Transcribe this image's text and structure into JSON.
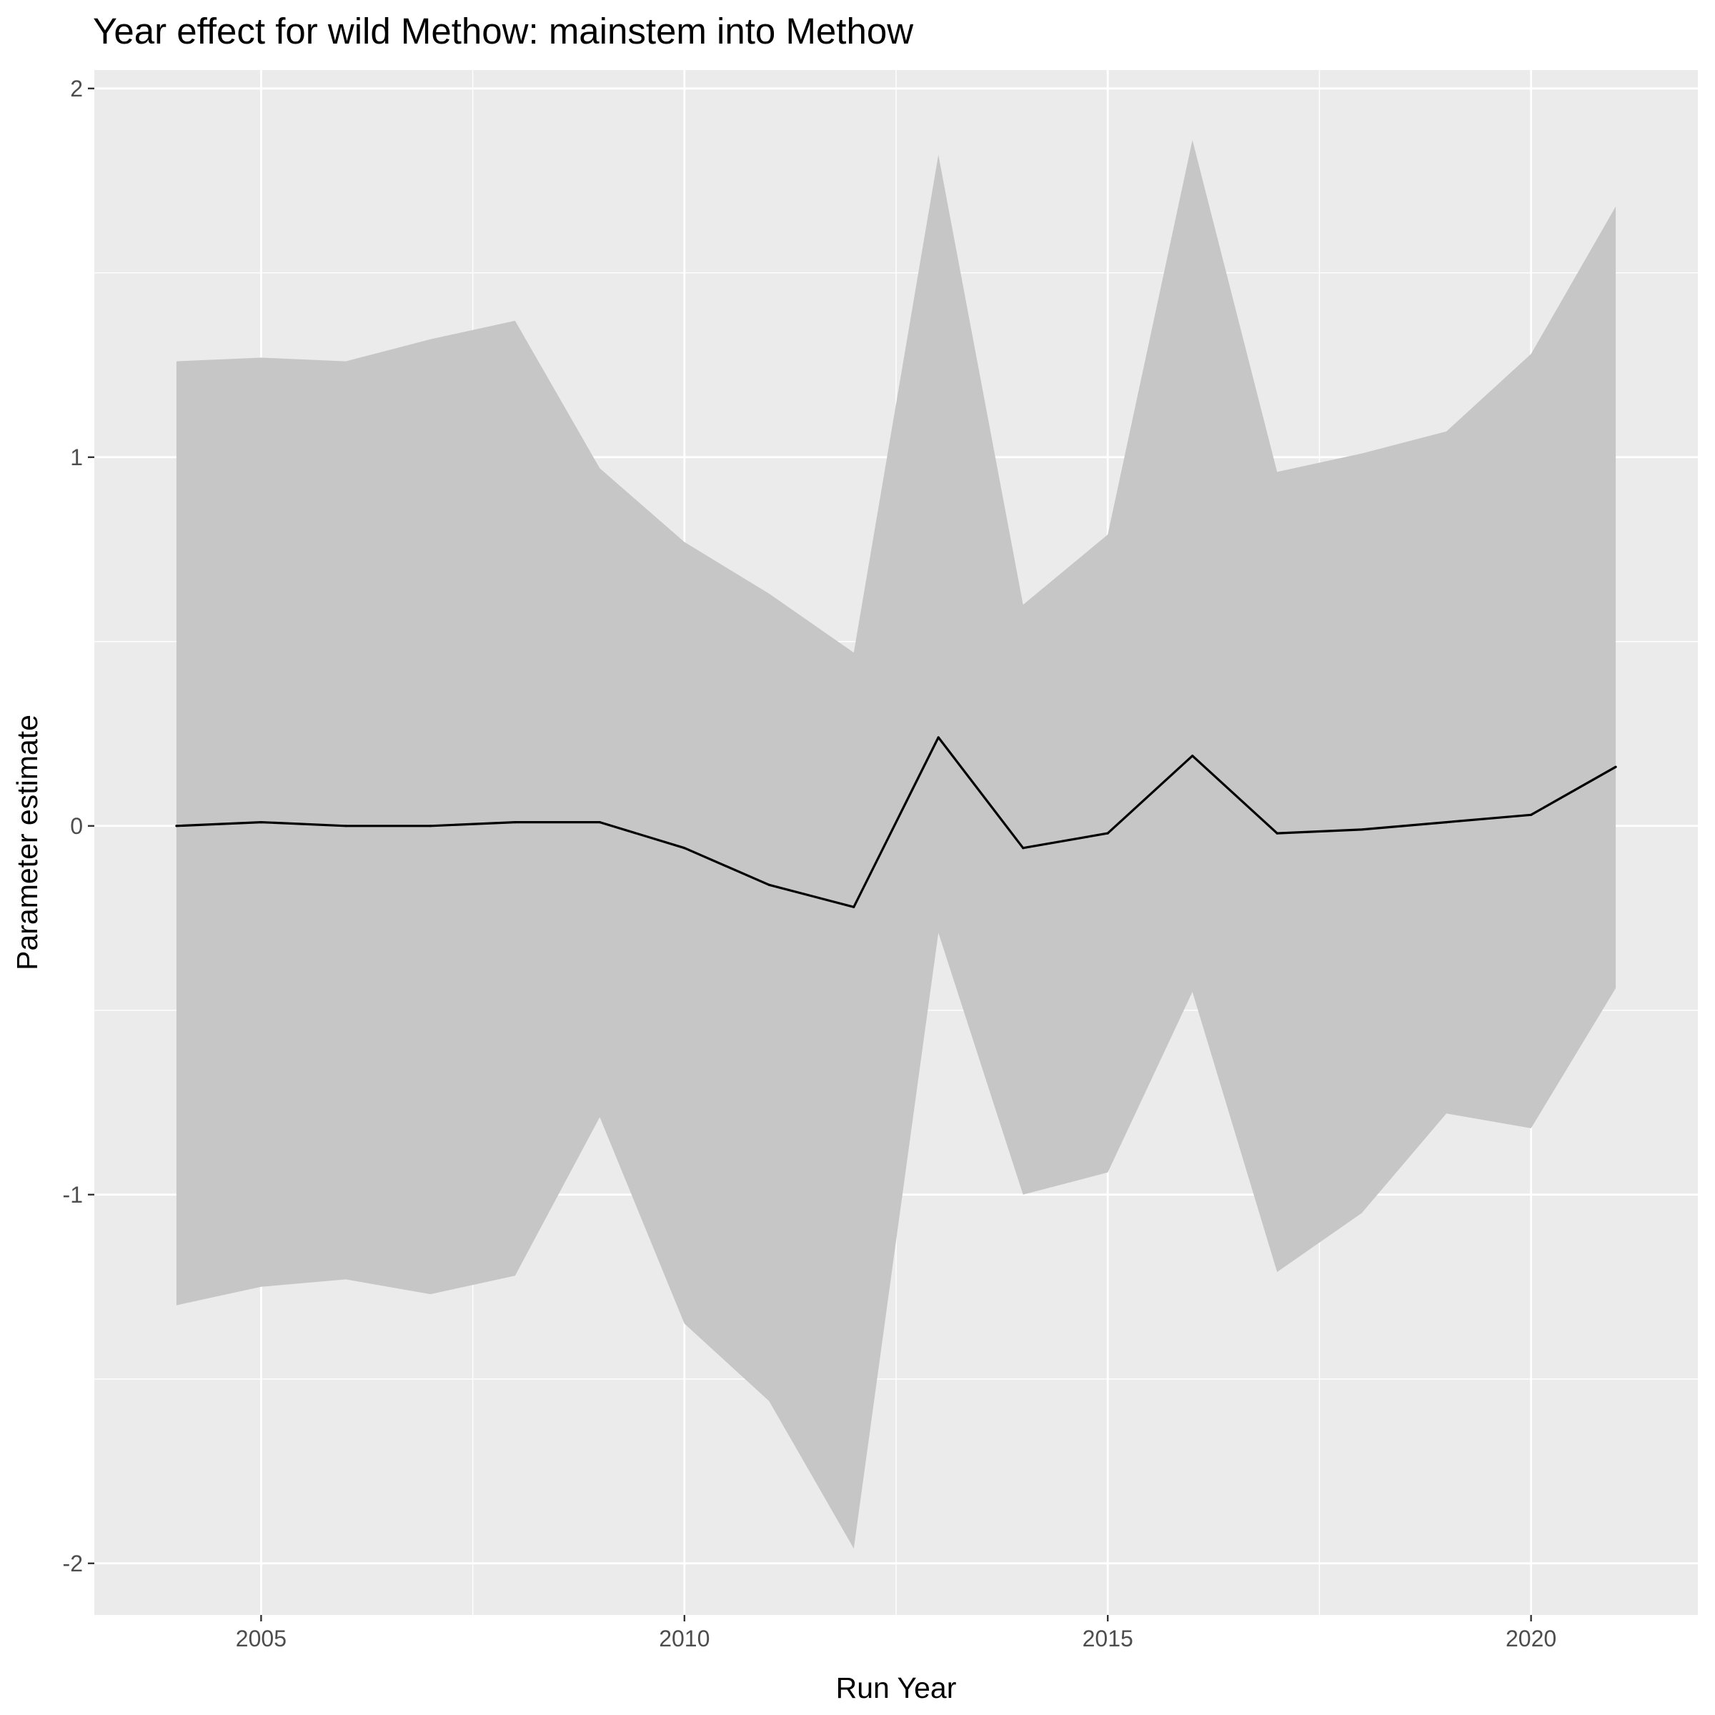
{
  "chart_data": {
    "type": "line",
    "title": "Year effect for wild Methow: mainstem into Methow",
    "xlabel": "Run Year",
    "ylabel": "Parameter estimate",
    "xlim": [
      2003.03,
      2021.97
    ],
    "ylim": [
      -2.14,
      2.05
    ],
    "x_ticks": [
      2005,
      2010,
      2015,
      2020
    ],
    "x_tick_labels": [
      "2005",
      "2010",
      "2015",
      "2020"
    ],
    "y_ticks": [
      -2,
      -1,
      0,
      1,
      2
    ],
    "y_tick_labels": [
      "-2",
      "-1",
      "0",
      "1",
      "2"
    ],
    "grid": true,
    "legend": "none",
    "colors": {
      "panel_background": "#ebebeb",
      "grid_major": "#ffffff",
      "ribbon": "#c6c6c6",
      "line": "#000000"
    },
    "x": [
      2004,
      2005,
      2006,
      2007,
      2008,
      2009,
      2010,
      2011,
      2012,
      2013,
      2014,
      2015,
      2016,
      2017,
      2018,
      2019,
      2020,
      2021
    ],
    "series": [
      {
        "values": [
          0.0,
          0.01,
          0.0,
          0.0,
          0.01,
          0.01,
          -0.06,
          -0.16,
          -0.22,
          0.24,
          -0.06,
          -0.02,
          0.19,
          -0.02,
          -0.01,
          0.01,
          0.03,
          0.16
        ],
        "lower": [
          -1.3,
          -1.25,
          -1.23,
          -1.27,
          -1.22,
          -0.79,
          -1.35,
          -1.56,
          -1.96,
          -0.29,
          -1.0,
          -0.94,
          -0.45,
          -1.21,
          -1.05,
          -0.78,
          -0.82,
          -0.44
        ],
        "upper": [
          1.26,
          1.27,
          1.26,
          1.32,
          1.37,
          0.97,
          0.77,
          0.63,
          0.47,
          1.82,
          0.6,
          0.79,
          1.86,
          0.96,
          1.01,
          1.07,
          1.28,
          1.68
        ]
      }
    ]
  }
}
